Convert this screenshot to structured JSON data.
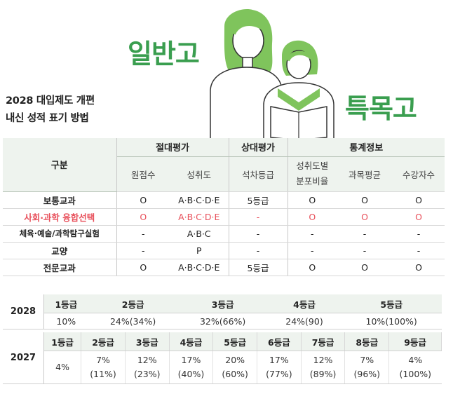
{
  "header": {
    "title_line1": "2028 대입제도 개편",
    "title_line2": "내신 성적 표기 방법",
    "word_general": "일반고",
    "word_special": "특목고"
  },
  "main_table": {
    "col_label": "구분",
    "groups": [
      "절대평가",
      "상대평가",
      "통계정보"
    ],
    "subcols": [
      "원점수",
      "성취도",
      "석차등급",
      "성취도별\n분포비율",
      "과목평균",
      "수강자수"
    ],
    "rows": [
      {
        "label": "보통교과",
        "cells": [
          "O",
          "A·B·C·D·E",
          "5등급",
          "O",
          "O",
          "O"
        ]
      },
      {
        "label": "사회·과학 융합선택",
        "cells": [
          "O",
          "A·B·C·D·E",
          "-",
          "O",
          "O",
          "O"
        ]
      },
      {
        "label": "체육·예술/과학탐구실험",
        "cells": [
          "-",
          "A·B·C",
          "-",
          "-",
          "-",
          "-"
        ]
      },
      {
        "label": "교양",
        "cells": [
          "-",
          "P",
          "-",
          "-",
          "-",
          "-"
        ]
      },
      {
        "label": "전문교과",
        "cells": [
          "O",
          "A·B·C·D·E",
          "5등급",
          "O",
          "O",
          "O"
        ]
      }
    ]
  },
  "grades_2028": {
    "year": "2028",
    "grades": [
      "1등급",
      "2등급",
      "3등급",
      "4등급",
      "5등급"
    ],
    "values": [
      "10%",
      "24%(34%)",
      "32%(66%)",
      "24%(90)",
      "10%(100%)"
    ]
  },
  "grades_2027": {
    "year": "2027",
    "grades": [
      "1등급",
      "2등급",
      "3등급",
      "4등급",
      "5등급",
      "6등급",
      "7등급",
      "8등급",
      "9등급"
    ],
    "values": [
      {
        "pct": "4%",
        "cum": ""
      },
      {
        "pct": "7%",
        "cum": "(11%)"
      },
      {
        "pct": "12%",
        "cum": "(23%)"
      },
      {
        "pct": "17%",
        "cum": "(40%)"
      },
      {
        "pct": "20%",
        "cum": "(60%)"
      },
      {
        "pct": "17%",
        "cum": "(77%)"
      },
      {
        "pct": "12%",
        "cum": "(89%)"
      },
      {
        "pct": "7%",
        "cum": "(96%)"
      },
      {
        "pct": "4%",
        "cum": "(100%)"
      }
    ]
  },
  "colors": {
    "accent": "#3a9e4f",
    "highlight": "#e8505b",
    "header_bg": "#eef3ee"
  }
}
